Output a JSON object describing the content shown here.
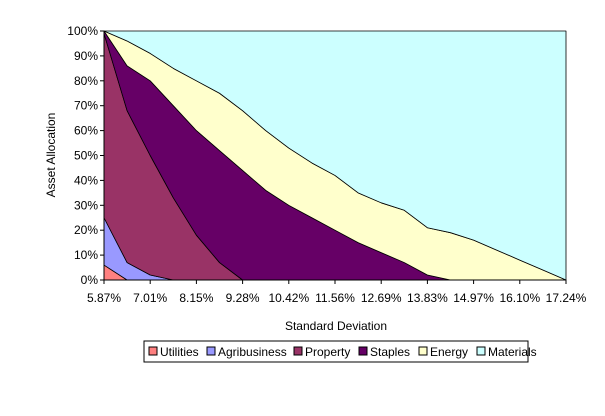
{
  "chart_data": {
    "type": "area",
    "stacked": true,
    "title": "",
    "xlabel": "Standard Deviation",
    "ylabel": "Asset Allocation",
    "x_tick_labels": [
      "5.87%",
      "7.01%",
      "8.15%",
      "9.28%",
      "10.42%",
      "11.56%",
      "12.69%",
      "13.83%",
      "14.97%",
      "16.10%",
      "17.24%"
    ],
    "y_tick_labels": [
      "0%",
      "10%",
      "20%",
      "30%",
      "40%",
      "50%",
      "60%",
      "70%",
      "80%",
      "90%",
      "100%"
    ],
    "ylim": [
      0,
      100
    ],
    "grid": false,
    "legend_position": "bottom",
    "x": [
      0,
      1,
      2,
      3,
      4,
      5,
      6,
      7,
      8,
      9,
      10,
      11,
      12,
      13,
      14,
      15,
      16,
      17,
      18,
      19,
      20
    ],
    "series": [
      {
        "name": "Utilities",
        "color": "#FF8080",
        "values": [
          6,
          0,
          0,
          0,
          0,
          0,
          0,
          0,
          0,
          0,
          0,
          0,
          0,
          0,
          0,
          0,
          0,
          0,
          0,
          0,
          0
        ]
      },
      {
        "name": "Agribusiness",
        "color": "#9999FF",
        "values": [
          19,
          7,
          2,
          0,
          0,
          0,
          0,
          0,
          0,
          0,
          0,
          0,
          0,
          0,
          0,
          0,
          0,
          0,
          0,
          0,
          0
        ]
      },
      {
        "name": "Property",
        "color": "#993366",
        "values": [
          74,
          61,
          48,
          33,
          18,
          7,
          0,
          0,
          0,
          0,
          0,
          0,
          0,
          0,
          0,
          0,
          0,
          0,
          0,
          0,
          0
        ]
      },
      {
        "name": "Staples",
        "color": "#660066",
        "values": [
          1,
          18,
          30,
          37,
          42,
          45,
          44,
          36,
          30,
          25,
          20,
          15,
          11,
          7,
          2,
          0,
          0,
          0,
          0,
          0,
          0
        ]
      },
      {
        "name": "Energy",
        "color": "#FFFFCC",
        "values": [
          0,
          10,
          11,
          15,
          20,
          23,
          24,
          24,
          23,
          22,
          22,
          20,
          20,
          21,
          19,
          19,
          16,
          12,
          8,
          4,
          0
        ]
      },
      {
        "name": "Materials",
        "color": "#CCFFFF",
        "values": [
          0,
          4,
          9,
          15,
          20,
          25,
          32,
          40,
          47,
          53,
          58,
          65,
          69,
          72,
          79,
          81,
          84,
          88,
          92,
          96,
          100
        ]
      }
    ]
  }
}
